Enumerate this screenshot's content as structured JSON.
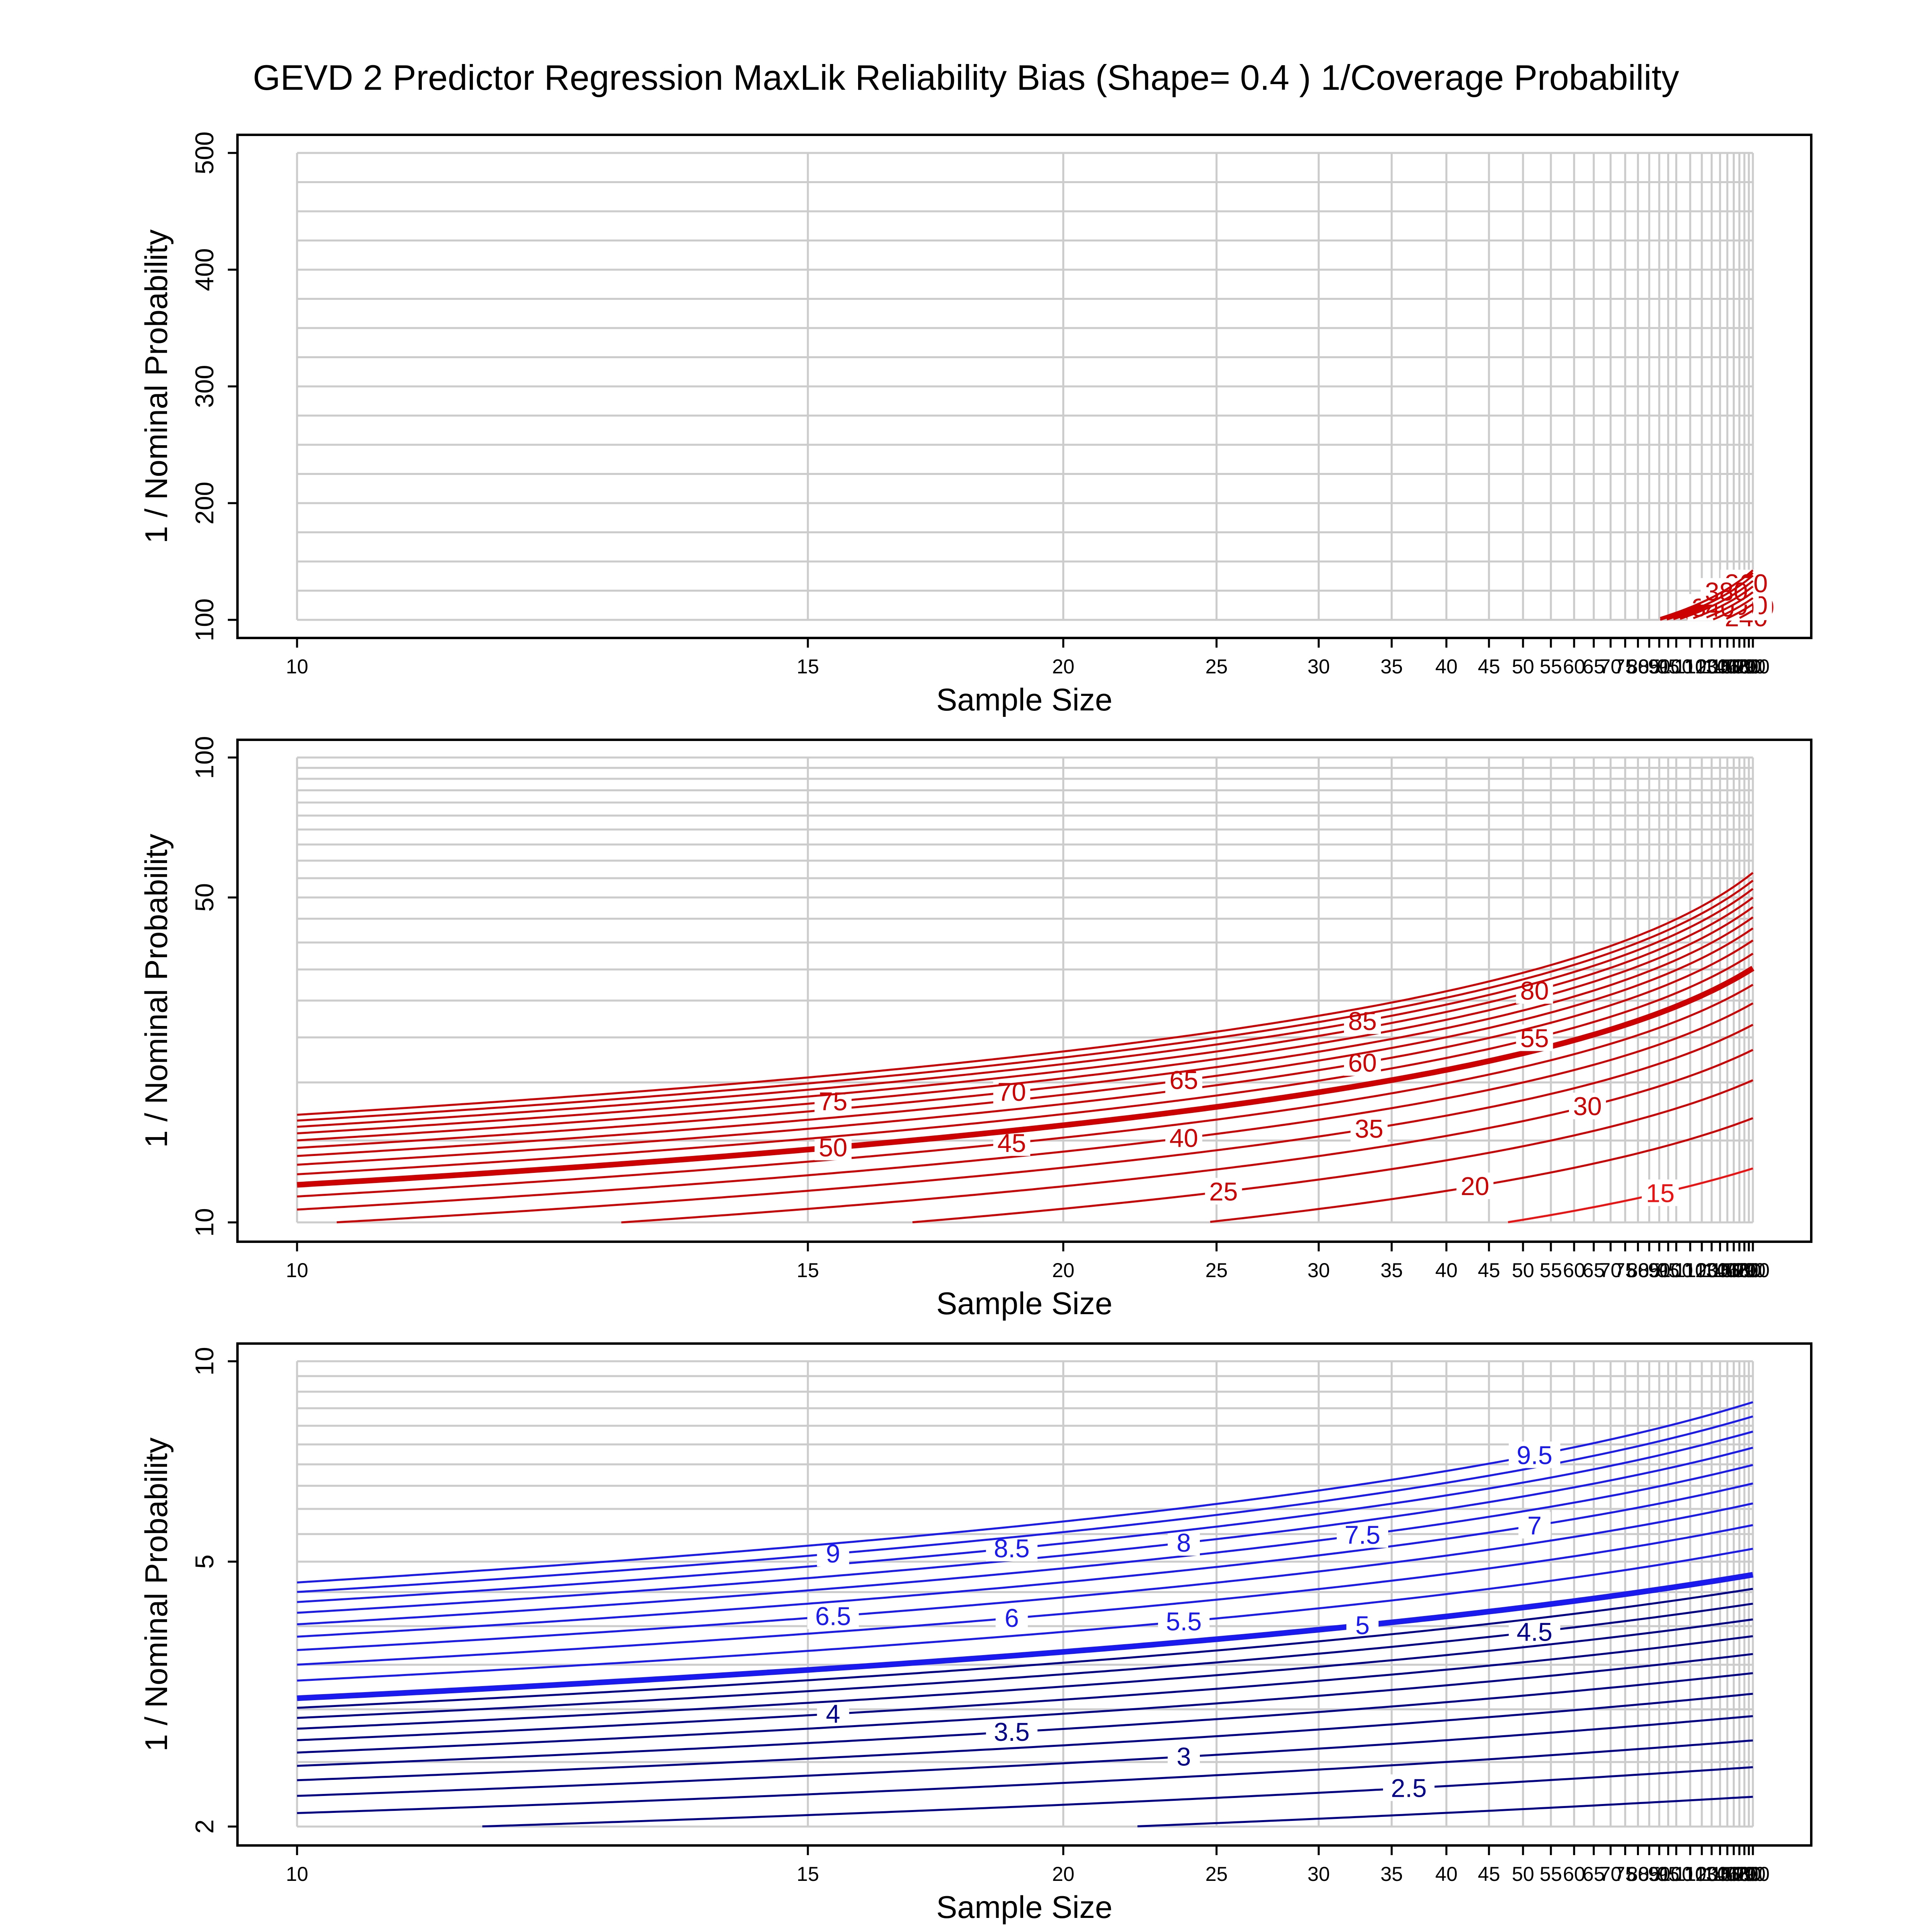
{
  "title": "GEVD 2 Predictor Regression MaxLik Reliability Bias (Shape= 0.4 ) 1/Coverage Probability",
  "colors": {
    "high": "#cc0000",
    "mid": "#ee1111",
    "low": "#1a1aee",
    "lowest": "#000088",
    "grid": "#cccccc",
    "frame": "#000000"
  },
  "chart_data": [
    {
      "type": "line",
      "subtype": "contour",
      "title": "GEVD 2 Predictor Regression MaxLik Reliability Bias (Shape= 0.4 ) 1/Coverage Probability",
      "xlabel": "Sample Size",
      "ylabel": "1 / Nominal Probability",
      "xscale": "reciprocal",
      "xlim": [
        10,
        200
      ],
      "ylim": [
        100,
        500
      ],
      "x_ticks": [
        10,
        15,
        20,
        25,
        30,
        35,
        40,
        45,
        50,
        55,
        60,
        65,
        70,
        75,
        80,
        85,
        90,
        95,
        100,
        110,
        120,
        130,
        140,
        150,
        160,
        170,
        180,
        190,
        200
      ],
      "x_tick_labels": [
        "10",
        "15",
        "20",
        "25",
        "30",
        "35",
        "40",
        "45",
        "50",
        "55",
        "60",
        "65",
        "70",
        "75",
        "80",
        "85",
        "90",
        "95",
        "100",
        "110",
        "120",
        "130",
        "140",
        "150",
        "160",
        "170",
        "180",
        "190",
        "200"
      ],
      "y_ticks": [
        100,
        200,
        300,
        400,
        500
      ],
      "y_tick_labels": [
        "100",
        "200",
        "300",
        "400",
        "500"
      ],
      "grid": true,
      "color": "#cc0000",
      "bold_level": 100,
      "levels": [
        15,
        20,
        25,
        30,
        35,
        40,
        45,
        50,
        55,
        60,
        65,
        70,
        75,
        80,
        85,
        90,
        95,
        100,
        120,
        140,
        160,
        180,
        200,
        220,
        240,
        260,
        280,
        300,
        320,
        340,
        360,
        380
      ],
      "level_labels": [
        "15",
        "20",
        "25",
        "30",
        "35",
        "40",
        "45",
        "50",
        "55",
        "60",
        "65",
        "70",
        "75",
        "80",
        "85",
        "90",
        "95",
        "100",
        "120",
        "140",
        "160",
        "180",
        "200",
        "220",
        "240",
        "260",
        "280",
        "300",
        "320",
        "340",
        "360",
        "380"
      ],
      "levels_extra_unlabeled": [
        110,
        130,
        150,
        170,
        190,
        210,
        230,
        250,
        270,
        290,
        310,
        330,
        350,
        370,
        390
      ]
    },
    {
      "type": "line",
      "subtype": "contour",
      "xlabel": "Sample Size",
      "ylabel": "1 / Nominal Probability",
      "xscale": "reciprocal",
      "yscale": "log",
      "xlim": [
        10,
        200
      ],
      "ylim": [
        10,
        100
      ],
      "x_ticks": [
        10,
        15,
        20,
        25,
        30,
        35,
        40,
        45,
        50,
        55,
        60,
        65,
        70,
        75,
        80,
        85,
        90,
        95,
        100,
        110,
        120,
        130,
        140,
        150,
        160,
        170,
        180,
        190,
        200
      ],
      "x_tick_labels": [
        "10",
        "15",
        "20",
        "25",
        "30",
        "35",
        "40",
        "45",
        "50",
        "55",
        "60",
        "65",
        "70",
        "75",
        "80",
        "85",
        "90",
        "95",
        "100",
        "110",
        "120",
        "130",
        "140",
        "150",
        "160",
        "170",
        "180",
        "190",
        "200"
      ],
      "y_ticks": [
        10,
        50,
        100
      ],
      "y_tick_labels": [
        "10",
        "50",
        "100"
      ],
      "grid": true,
      "bold_levels": [
        10,
        50
      ],
      "levels": [
        7,
        7.5,
        8,
        8.5,
        9,
        9.5,
        10,
        15,
        20,
        25,
        30,
        35,
        40,
        45,
        50,
        55,
        60,
        65,
        70,
        75,
        80,
        85
      ],
      "level_labels": [
        "7",
        "7.5",
        "8",
        "8.5",
        "9",
        "9.5",
        "10",
        "15",
        "20",
        "25",
        "30",
        "35",
        "40",
        "45",
        "50",
        "55",
        "60",
        "65",
        "70",
        "75",
        "80",
        "85"
      ],
      "levels_extra_unlabeled": [
        90,
        95
      ]
    },
    {
      "type": "line",
      "subtype": "contour",
      "xlabel": "Sample Size",
      "ylabel": "1 / Nominal Probability",
      "xscale": "reciprocal",
      "yscale": "log",
      "xlim": [
        10,
        200
      ],
      "ylim": [
        2,
        10
      ],
      "x_ticks": [
        10,
        15,
        20,
        25,
        30,
        35,
        40,
        45,
        50,
        55,
        60,
        65,
        70,
        75,
        80,
        85,
        90,
        95,
        100,
        110,
        120,
        130,
        140,
        150,
        160,
        170,
        180,
        190,
        200
      ],
      "x_tick_labels": [
        "10",
        "15",
        "20",
        "25",
        "30",
        "35",
        "40",
        "45",
        "50",
        "55",
        "60",
        "65",
        "70",
        "75",
        "80",
        "85",
        "90",
        "95",
        "100",
        "110",
        "120",
        "130",
        "140",
        "150",
        "160",
        "170",
        "180",
        "190",
        "200"
      ],
      "y_ticks": [
        2,
        5,
        10
      ],
      "y_tick_labels": [
        "2",
        "5",
        "10"
      ],
      "grid": true,
      "bold_levels": [
        2,
        5
      ],
      "levels": [
        2,
        2.5,
        3,
        3.5,
        4,
        4.5,
        5,
        5.5,
        6,
        6.5,
        7,
        7.5,
        8,
        8.5,
        9,
        9.5
      ],
      "level_labels": [
        "2",
        "2.5",
        "3",
        "3.5",
        "4",
        "4.5",
        "5",
        "5.5",
        "6",
        "6.5",
        "7",
        "7.5",
        "8",
        "8.5",
        "9",
        "9.5"
      ],
      "levels_extra_unlabeled": [
        2.25,
        2.75,
        3.25,
        3.75,
        4.25,
        4.75
      ]
    }
  ]
}
